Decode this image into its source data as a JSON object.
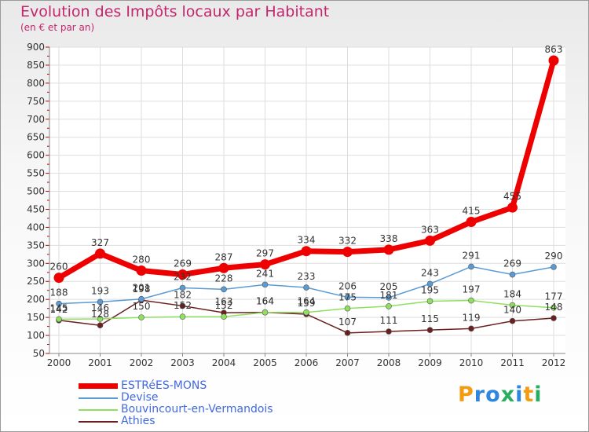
{
  "title": "Evolution des Impôts locaux par Habitant",
  "subtitle": "(en € et par an)",
  "logo": {
    "letters": [
      "P",
      "r",
      "o",
      "x",
      "i",
      "t",
      "i"
    ],
    "colors": [
      "#f39c12",
      "#2e86de",
      "#2e86de",
      "#27ae60",
      "#2e86de",
      "#f39c12",
      "#27ae60"
    ]
  },
  "chart_data": {
    "type": "line",
    "x": [
      "2000",
      "2001",
      "2002",
      "2003",
      "2004",
      "2005",
      "2006",
      "2007",
      "2008",
      "2009",
      "2010",
      "2011",
      "2012"
    ],
    "yticks": [
      "900",
      "850",
      "800",
      "750",
      "700",
      "650",
      "600",
      "550",
      "500",
      "450",
      "400",
      "350",
      "300",
      "250",
      "200",
      "150",
      "100",
      "50"
    ],
    "ylim": [
      50,
      900
    ],
    "grid": true,
    "legend_position": "bottom-left",
    "series": [
      {
        "name": "ESTRéES-MONS",
        "color": "#ee0000",
        "values": [
          260,
          327,
          280,
          269,
          287,
          297,
          334,
          332,
          338,
          363,
          415,
          455,
          863
        ],
        "labels": [
          "260",
          "327",
          "280",
          "269",
          "287",
          "297",
          "334",
          "332",
          "338",
          "363",
          "415",
          "455",
          "863"
        ]
      },
      {
        "name": "Devise",
        "color": "#5b9bd5",
        "values": [
          188,
          193,
          201,
          232,
          228,
          241,
          233,
          206,
          205,
          243,
          291,
          269,
          290
        ],
        "labels": [
          "188",
          "193",
          "201",
          "232",
          "228",
          "241",
          "233",
          "206",
          "205",
          "243",
          "291",
          "269",
          "290"
        ]
      },
      {
        "name": "Bouvincourt-en-Vermandois",
        "color": "#90e060",
        "values": [
          145,
          146,
          150,
          152,
          152,
          164,
          164,
          175,
          181,
          195,
          197,
          184,
          177
        ],
        "labels": [
          "145",
          "146",
          "150",
          "152",
          "152",
          "164",
          "164",
          "175",
          "181",
          "195",
          "197",
          "184",
          "177"
        ]
      },
      {
        "name": "Athies",
        "color": "#6b1f1f",
        "values": [
          142,
          128,
          198,
          182,
          163,
          164,
          159,
          107,
          111,
          115,
          119,
          140,
          148
        ],
        "labels": [
          "142",
          "128",
          "198",
          "182",
          "163",
          "164",
          "159",
          "107",
          "111",
          "115",
          "119",
          "140",
          "148"
        ]
      }
    ]
  }
}
